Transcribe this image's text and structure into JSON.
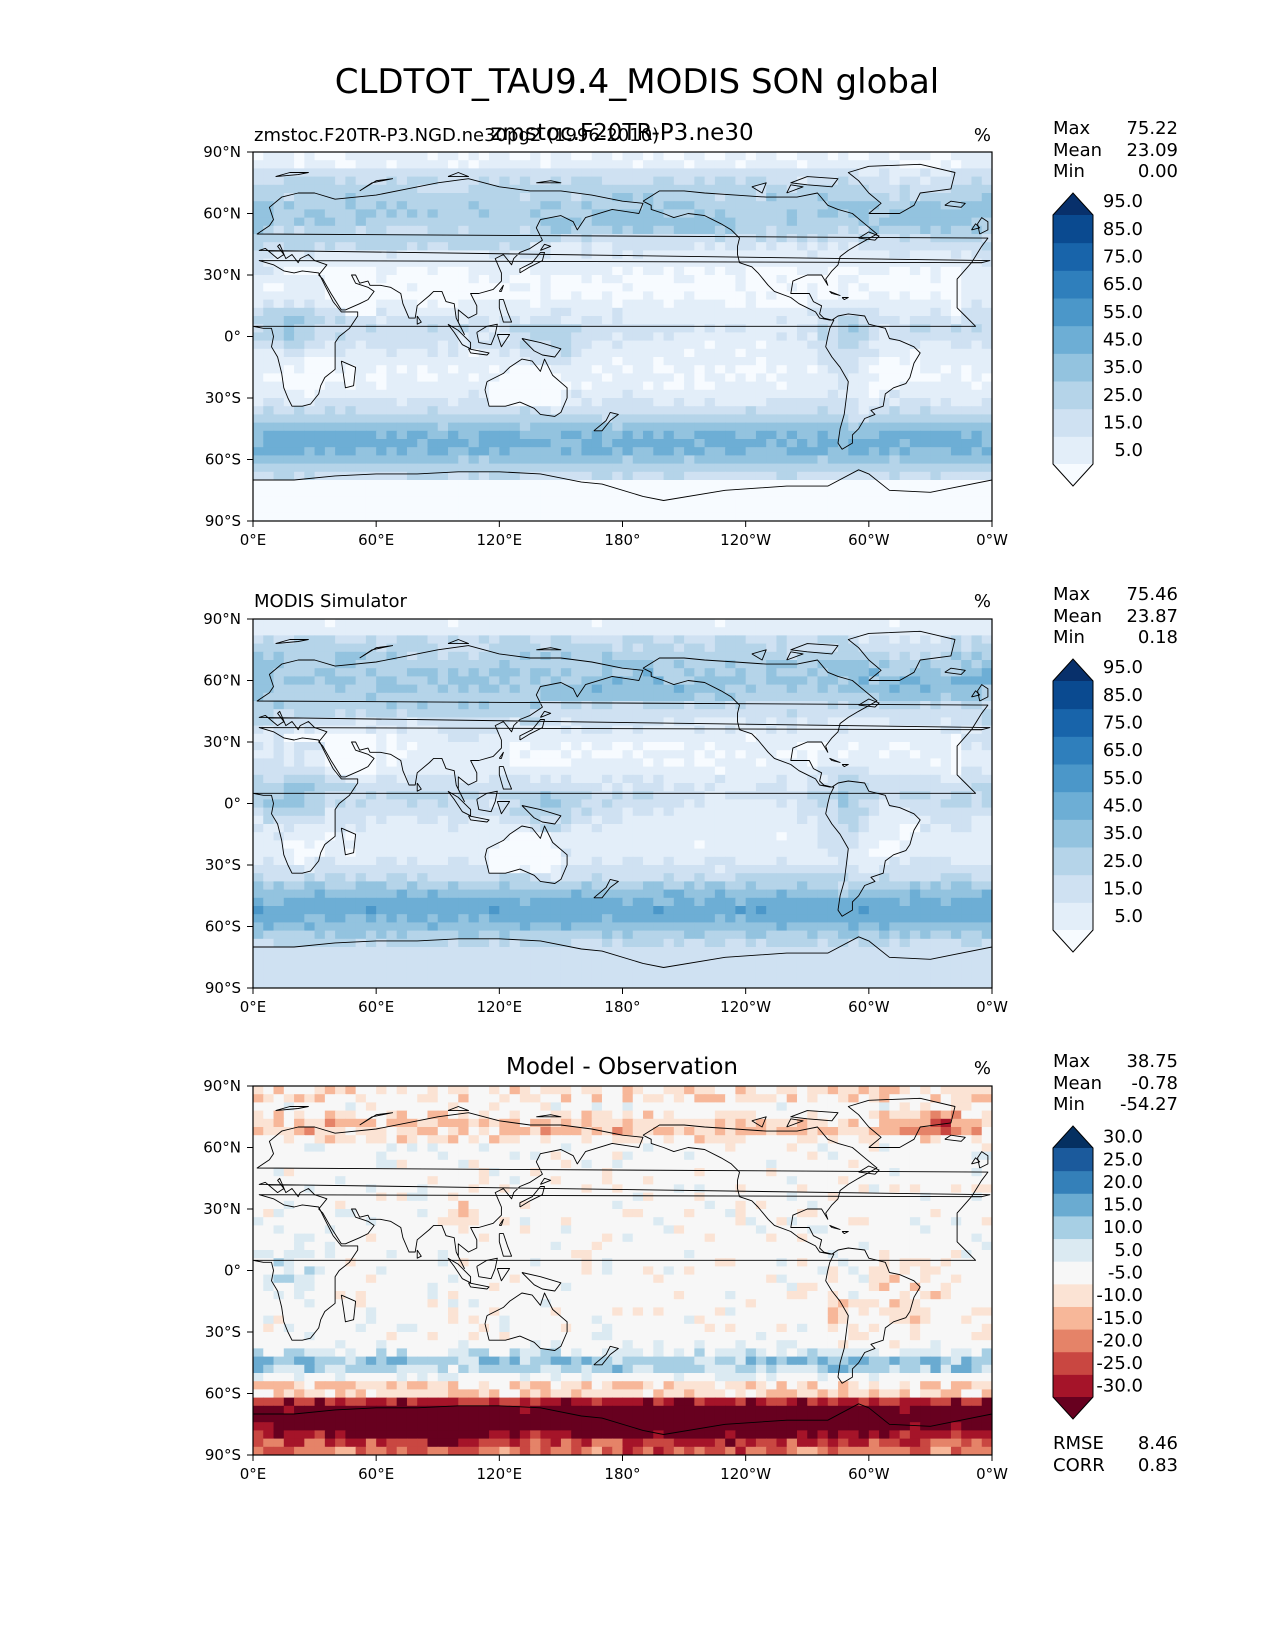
{
  "figure": {
    "title": "CLDTOT_TAU9.4_MODIS SON global"
  },
  "colors": {
    "blues": [
      "#f7fbff",
      "#e3eef9",
      "#cfe1f2",
      "#b5d4e9",
      "#93c3df",
      "#6daed5",
      "#4b97c9",
      "#2f7fbc",
      "#1864aa",
      "#0a4a90",
      "#08306b"
    ],
    "diff": [
      "#67001f",
      "#a51429",
      "#c94741",
      "#e58368",
      "#f7b799",
      "#fbe3d4",
      "#f7f7f7",
      "#dbeaf2",
      "#a7cfe4",
      "#6aabd1",
      "#3480b9",
      "#1b5a9c",
      "#053061"
    ],
    "coast": "#000000"
  },
  "chart_data": [
    {
      "type": "heatmap",
      "title_left": "zmstoc.F20TR-P3.NGD.ne30pg2 (1996-2010)",
      "title_center": "zmstoc.F20TR-P3.ne30",
      "units": "%",
      "stats": {
        "max_label": "Max",
        "max": "75.22",
        "mean_label": "Mean",
        "mean": "23.09",
        "min_label": "Min",
        "min": "0.00"
      },
      "xticks": [
        "0°E",
        "60°E",
        "120°E",
        "180°",
        "120°W",
        "60°W",
        "0°W"
      ],
      "yticks": [
        "90°N",
        "60°N",
        "30°N",
        "0°",
        "30°S",
        "60°S",
        "90°S"
      ],
      "xlim": [
        0,
        360
      ],
      "ylim": [
        -90,
        90
      ],
      "colorbar_levels": [
        "5.0",
        "15.0",
        "25.0",
        "35.0",
        "45.0",
        "55.0",
        "65.0",
        "75.0",
        "85.0",
        "95.0"
      ],
      "field": "model"
    },
    {
      "type": "heatmap",
      "title_left": "MODIS Simulator",
      "title_center": "",
      "units": "%",
      "stats": {
        "max_label": "Max",
        "max": "75.46",
        "mean_label": "Mean",
        "mean": "23.87",
        "min_label": "Min",
        "min": "0.18"
      },
      "xticks": [
        "0°E",
        "60°E",
        "120°E",
        "180°",
        "120°W",
        "60°W",
        "0°W"
      ],
      "yticks": [
        "90°N",
        "60°N",
        "30°N",
        "0°",
        "30°S",
        "60°S",
        "90°S"
      ],
      "xlim": [
        0,
        360
      ],
      "ylim": [
        -90,
        90
      ],
      "colorbar_levels": [
        "5.0",
        "15.0",
        "25.0",
        "35.0",
        "45.0",
        "55.0",
        "65.0",
        "75.0",
        "85.0",
        "95.0"
      ],
      "field": "obs"
    },
    {
      "type": "heatmap",
      "title_left": "",
      "title_center": "Model - Observation",
      "units": "%",
      "stats": {
        "max_label": "Max",
        "max": "38.75",
        "mean_label": "Mean",
        "mean": "-0.78",
        "min_label": "Min",
        "min": "-54.27"
      },
      "xticks": [
        "0°E",
        "60°E",
        "120°E",
        "180°",
        "120°W",
        "60°W",
        "0°W"
      ],
      "yticks": [
        "90°N",
        "60°N",
        "30°N",
        "0°",
        "30°S",
        "60°S",
        "90°S"
      ],
      "xlim": [
        0,
        360
      ],
      "ylim": [
        -90,
        90
      ],
      "colorbar_levels": [
        "-30.0",
        "-25.0",
        "-20.0",
        "-15.0",
        "-10.0",
        "-5.0",
        "5.0",
        "10.0",
        "15.0",
        "20.0",
        "25.0",
        "30.0"
      ],
      "field": "diff",
      "metrics": {
        "rmse_label": "RMSE",
        "rmse": "8.46",
        "corr_label": "CORR",
        "corr": "0.83"
      }
    }
  ]
}
